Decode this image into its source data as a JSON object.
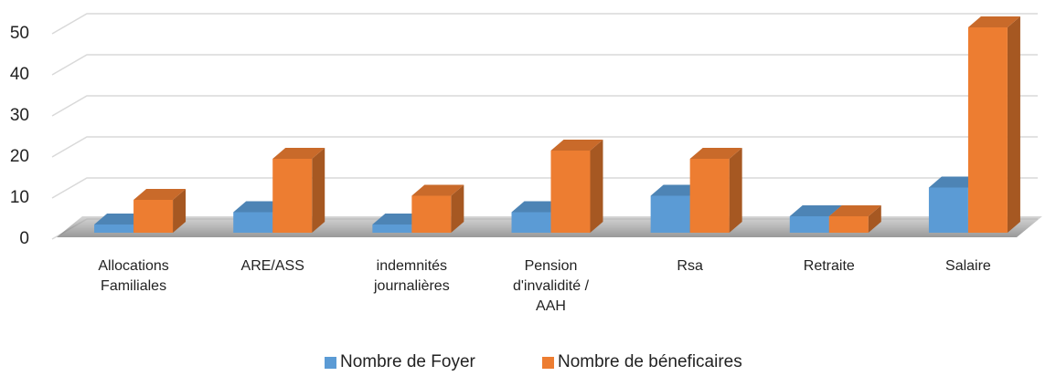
{
  "chart_data": {
    "type": "bar3d",
    "categories": [
      "Allocations Familiales",
      "ARE/ASS",
      "indemnités journalières",
      "Pension d'invalidité / AAH",
      "Rsa",
      "Retraite",
      "Salaire"
    ],
    "series": [
      {
        "name": "Nombre de Foyer",
        "color": "#5b9bd5",
        "values": [
          2,
          5,
          2,
          5,
          9,
          4,
          11
        ]
      },
      {
        "name": "Nombre de béneficaires",
        "color": "#ed7d31",
        "values": [
          8,
          18,
          9,
          20,
          18,
          4,
          50
        ]
      }
    ],
    "ylim": [
      0,
      50
    ],
    "yticks": [
      0,
      10,
      20,
      30,
      40,
      50
    ],
    "grid": true,
    "legend": "bottom"
  }
}
